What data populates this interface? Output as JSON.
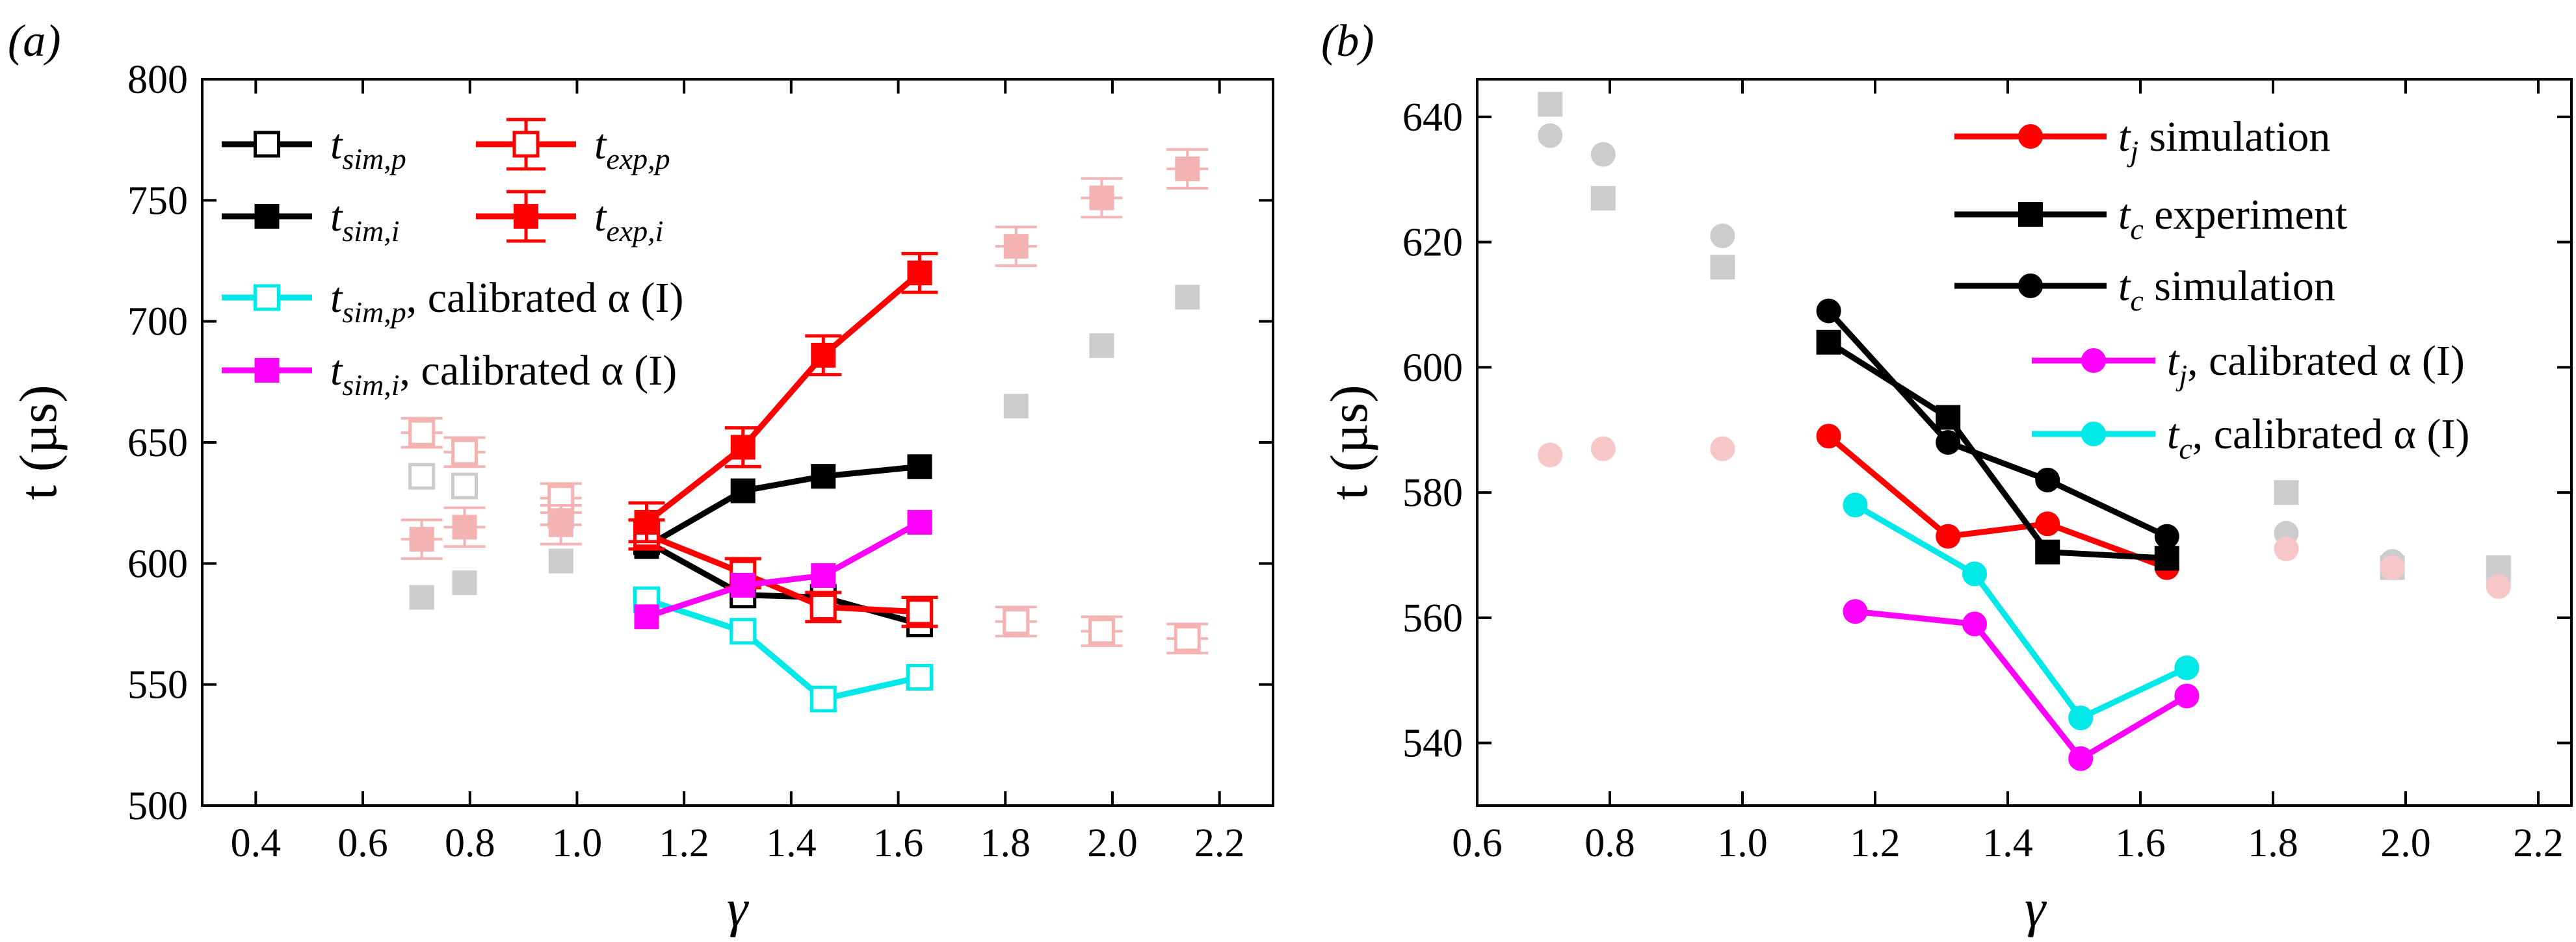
{
  "chart_data": [
    {
      "type": "line",
      "panel_label": "(a)",
      "xlabel": "γ",
      "ylabel": "t (µs)",
      "xlim": [
        0.3,
        2.3
      ],
      "ylim": [
        500,
        800
      ],
      "xticks": [
        0.4,
        0.6,
        0.8,
        1.0,
        1.2,
        1.4,
        1.6,
        1.8,
        2.0,
        2.2
      ],
      "xtick_labels": [
        "0.4",
        "0.6",
        "0.8",
        "1.0",
        "1.2",
        "1.4",
        "1.6",
        "1.8",
        "2.0",
        "2.2"
      ],
      "yticks": [
        500,
        550,
        600,
        650,
        700,
        750,
        800
      ],
      "ytick_labels": [
        "500",
        "550",
        "600",
        "650",
        "700",
        "750",
        "800"
      ],
      "grid": false,
      "legend_position": "top-left",
      "series": [
        {
          "name": "t_sim,p",
          "legend_base": "t",
          "legend_sub": "sim,p",
          "legend_suffix": "",
          "color": "#000000",
          "marker": "square-open",
          "errorbars": false,
          "x": [
            1.13,
            1.31,
            1.46,
            1.64
          ],
          "y": [
            609,
            587,
            586,
            575
          ]
        },
        {
          "name": "t_sim,i",
          "legend_base": "t",
          "legend_sub": "sim,i",
          "legend_suffix": "",
          "color": "#000000",
          "marker": "square-filled",
          "errorbars": false,
          "x": [
            1.13,
            1.31,
            1.46,
            1.64
          ],
          "y": [
            607,
            630,
            636,
            640
          ]
        },
        {
          "name": "t_exp,p",
          "legend_base": "t",
          "legend_sub": "exp,p",
          "legend_suffix": "",
          "color": "#ff0000",
          "marker": "square-open",
          "errorbars": true,
          "err": 6,
          "x": [
            1.13,
            1.31,
            1.46,
            1.64
          ],
          "y": [
            612,
            596,
            582,
            580
          ]
        },
        {
          "name": "t_exp,i",
          "legend_base": "t",
          "legend_sub": "exp,i",
          "legend_suffix": "",
          "color": "#ff0000",
          "marker": "square-filled",
          "errorbars": true,
          "err": 8,
          "x": [
            1.13,
            1.31,
            1.46,
            1.64
          ],
          "y": [
            617,
            648,
            686,
            720
          ]
        },
        {
          "name": "t_sim,p, calibrated α(I)",
          "legend_base": "t",
          "legend_sub": "sim,p",
          "legend_suffix": ", calibrated α (I)",
          "color": "#00e8e8",
          "marker": "square-open",
          "errorbars": false,
          "x": [
            1.13,
            1.31,
            1.46,
            1.64
          ],
          "y": [
            585,
            572,
            544,
            553
          ]
        },
        {
          "name": "t_sim,i, calibrated α(I)",
          "legend_base": "t",
          "legend_sub": "sim,i",
          "legend_suffix": ", calibrated α (I)",
          "color": "#ff00ff",
          "marker": "square-filled",
          "errorbars": false,
          "x": [
            1.13,
            1.31,
            1.46,
            1.64
          ],
          "y": [
            578,
            591,
            595,
            617
          ]
        }
      ],
      "background_points": [
        {
          "color": "#cccccc",
          "marker": "square-open",
          "errorbars": false,
          "x": [
            0.71,
            0.79,
            0.97
          ],
          "y": [
            636,
            632,
            620
          ]
        },
        {
          "color": "#cccccc",
          "marker": "square-filled",
          "errorbars": false,
          "x": [
            0.71,
            0.79,
            0.97,
            1.82,
            1.98,
            2.14
          ],
          "y": [
            586,
            592,
            601,
            665,
            690,
            710
          ]
        },
        {
          "color": "#f4b3b3",
          "marker": "square-open",
          "errorbars": true,
          "err": 6,
          "x": [
            0.71,
            0.79,
            0.97,
            1.82,
            1.98,
            2.14
          ],
          "y": [
            654,
            646,
            627,
            576,
            572,
            569
          ]
        },
        {
          "color": "#f4b3b3",
          "marker": "square-filled",
          "errorbars": true,
          "err": 8,
          "x": [
            0.71,
            0.79,
            0.97,
            1.82,
            1.98,
            2.14
          ],
          "y": [
            610,
            615,
            616,
            731,
            751,
            763
          ]
        }
      ]
    },
    {
      "type": "line",
      "panel_label": "(b)",
      "xlabel": "γ",
      "ylabel": "t (µs)",
      "xlim": [
        0.6,
        2.25
      ],
      "ylim": [
        530,
        646
      ],
      "xticks": [
        0.6,
        0.8,
        1.0,
        1.2,
        1.4,
        1.6,
        1.8,
        2.0,
        2.2
      ],
      "xtick_labels": [
        "0.6",
        "0.8",
        "1.0",
        "1.2",
        "1.4",
        "1.6",
        "1.8",
        "2.0",
        "2.2"
      ],
      "yticks": [
        540,
        560,
        580,
        600,
        620,
        640
      ],
      "ytick_labels": [
        "540",
        "560",
        "580",
        "600",
        "620",
        "640"
      ],
      "grid": false,
      "legend_position": "top-right",
      "series": [
        {
          "name": "t_j simulation",
          "legend_base": "t",
          "legend_sub": "j",
          "legend_suffix": " simulation",
          "color": "#ff0000",
          "marker": "circle-filled",
          "x": [
            1.13,
            1.31,
            1.46,
            1.64
          ],
          "y": [
            589,
            573,
            575,
            568
          ]
        },
        {
          "name": "t_c experiment",
          "legend_base": "t",
          "legend_sub": "c",
          "legend_suffix": " experiment",
          "color": "#000000",
          "marker": "square-filled",
          "x": [
            1.13,
            1.31,
            1.46,
            1.64
          ],
          "y": [
            604,
            592,
            570.5,
            569.5
          ]
        },
        {
          "name": "t_c simulation",
          "legend_base": "t",
          "legend_sub": "c",
          "legend_suffix": " simulation",
          "color": "#000000",
          "marker": "circle-filled",
          "x": [
            1.13,
            1.31,
            1.46,
            1.64
          ],
          "y": [
            609,
            588,
            582,
            573
          ]
        },
        {
          "name": "t_j, calibrated α(I)",
          "legend_base": "t",
          "legend_sub": "j",
          "legend_suffix": ", calibrated α (I)",
          "color": "#ff00ff",
          "marker": "circle-filled",
          "x": [
            1.17,
            1.35,
            1.51,
            1.67
          ],
          "y": [
            561,
            559,
            537.5,
            547.5
          ]
        },
        {
          "name": "t_c, calibrated α(I)",
          "legend_base": "t",
          "legend_sub": "c",
          "legend_suffix": ", calibrated α (I)",
          "color": "#00e8e8",
          "marker": "circle-filled",
          "x": [
            1.17,
            1.35,
            1.51,
            1.67
          ],
          "y": [
            578,
            567,
            544,
            552
          ]
        }
      ],
      "background_points": [
        {
          "color": "#cccccc",
          "marker": "square-filled",
          "x": [
            0.71,
            0.79,
            0.97,
            1.82,
            1.98,
            2.14
          ],
          "y": [
            642,
            627,
            616,
            580,
            568,
            568
          ]
        },
        {
          "color": "#cccccc",
          "marker": "circle-filled",
          "x": [
            0.71,
            0.79,
            0.97,
            1.82,
            1.98,
            2.14
          ],
          "y": [
            637,
            634,
            621,
            573.5,
            569,
            565.5
          ]
        },
        {
          "color": "#f7c6c6",
          "marker": "circle-filled",
          "x": [
            0.71,
            0.79,
            0.97,
            1.82,
            1.98,
            2.14
          ],
          "y": [
            586,
            587,
            587,
            571,
            568,
            565
          ]
        }
      ]
    }
  ]
}
